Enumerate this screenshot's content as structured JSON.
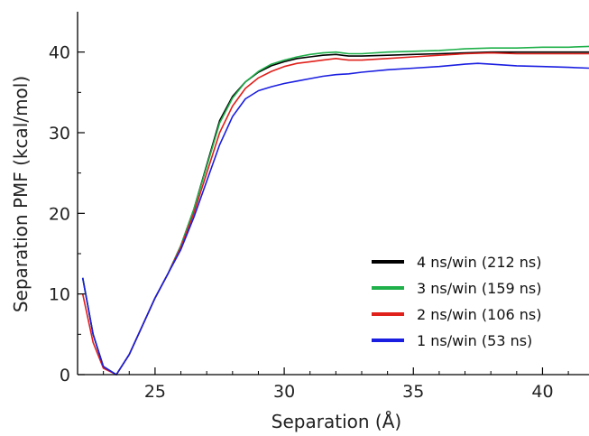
{
  "chart_data": {
    "type": "line",
    "title": "",
    "xlabel": "Separation (Å)",
    "ylabel": "Separation PMF (kcal/mol)",
    "xlim": [
      22,
      41.8
    ],
    "ylim": [
      0,
      45
    ],
    "xticks": [
      25,
      30,
      35,
      40
    ],
    "yticks": [
      0,
      10,
      20,
      30,
      40
    ],
    "grid": false,
    "legend_position": "lower-right",
    "series": [
      {
        "name": "4 ns/win (212 ns)",
        "color": "#000000",
        "x": [
          22.2,
          22.6,
          23.0,
          23.5,
          24.0,
          24.5,
          25.0,
          25.5,
          26.0,
          26.5,
          27.0,
          27.5,
          28.0,
          28.5,
          29.0,
          29.5,
          30.0,
          30.5,
          31.0,
          31.5,
          32.0,
          32.5,
          33.0,
          34.0,
          35.0,
          36.0,
          37.0,
          38.0,
          39.0,
          40.0,
          41.0,
          41.8
        ],
        "y": [
          12.0,
          5.0,
          1.0,
          0.0,
          2.5,
          6.0,
          9.5,
          12.5,
          16.0,
          20.5,
          26.0,
          31.5,
          34.5,
          36.3,
          37.5,
          38.3,
          38.8,
          39.2,
          39.4,
          39.6,
          39.7,
          39.5,
          39.5,
          39.6,
          39.7,
          39.8,
          39.9,
          40.0,
          40.0,
          40.0,
          40.0,
          40.0
        ]
      },
      {
        "name": "3 ns/win (159 ns)",
        "color": "#1fb04a",
        "x": [
          22.2,
          22.6,
          23.0,
          23.5,
          24.0,
          24.5,
          25.0,
          25.5,
          26.0,
          26.5,
          27.0,
          27.5,
          28.0,
          28.5,
          29.0,
          29.5,
          30.0,
          30.5,
          31.0,
          31.5,
          32.0,
          32.5,
          33.0,
          34.0,
          35.0,
          36.0,
          37.0,
          38.0,
          39.0,
          40.0,
          41.0,
          41.8
        ],
        "y": [
          12.0,
          5.0,
          1.0,
          0.0,
          2.5,
          6.0,
          9.5,
          12.5,
          16.0,
          20.5,
          25.8,
          31.2,
          34.3,
          36.3,
          37.6,
          38.5,
          39.0,
          39.4,
          39.7,
          39.9,
          40.0,
          39.8,
          39.8,
          40.0,
          40.1,
          40.2,
          40.4,
          40.5,
          40.5,
          40.6,
          40.6,
          40.7
        ]
      },
      {
        "name": "2 ns/win (106 ns)",
        "color": "#e0201b",
        "x": [
          22.2,
          22.6,
          23.0,
          23.5,
          24.0,
          24.5,
          25.0,
          25.5,
          26.0,
          26.5,
          27.0,
          27.5,
          28.0,
          28.5,
          29.0,
          29.5,
          30.0,
          30.5,
          31.0,
          31.5,
          32.0,
          32.5,
          33.0,
          34.0,
          35.0,
          36.0,
          37.0,
          38.0,
          39.0,
          40.0,
          41.0,
          41.8
        ],
        "y": [
          10.0,
          4.0,
          0.8,
          0.0,
          2.5,
          6.0,
          9.5,
          12.5,
          15.8,
          20.0,
          25.0,
          30.0,
          33.3,
          35.5,
          36.8,
          37.6,
          38.2,
          38.6,
          38.8,
          39.0,
          39.2,
          39.0,
          39.0,
          39.2,
          39.4,
          39.6,
          39.8,
          39.9,
          39.8,
          39.8,
          39.8,
          39.8
        ]
      },
      {
        "name": "1 ns/win (53 ns)",
        "color": "#1a1ee0",
        "x": [
          22.2,
          22.6,
          23.0,
          23.5,
          24.0,
          24.5,
          25.0,
          25.5,
          26.0,
          26.5,
          27.0,
          27.5,
          28.0,
          28.5,
          29.0,
          29.5,
          30.0,
          30.5,
          31.0,
          31.5,
          32.0,
          32.5,
          33.0,
          34.0,
          35.0,
          36.0,
          37.0,
          37.5,
          38.0,
          39.0,
          40.0,
          41.0,
          41.8
        ],
        "y": [
          12.0,
          5.0,
          1.0,
          0.0,
          2.5,
          6.0,
          9.5,
          12.5,
          15.5,
          19.5,
          24.0,
          28.5,
          32.0,
          34.2,
          35.2,
          35.7,
          36.1,
          36.4,
          36.7,
          37.0,
          37.2,
          37.3,
          37.5,
          37.8,
          38.0,
          38.2,
          38.5,
          38.6,
          38.5,
          38.3,
          38.2,
          38.1,
          38.0
        ]
      }
    ]
  }
}
